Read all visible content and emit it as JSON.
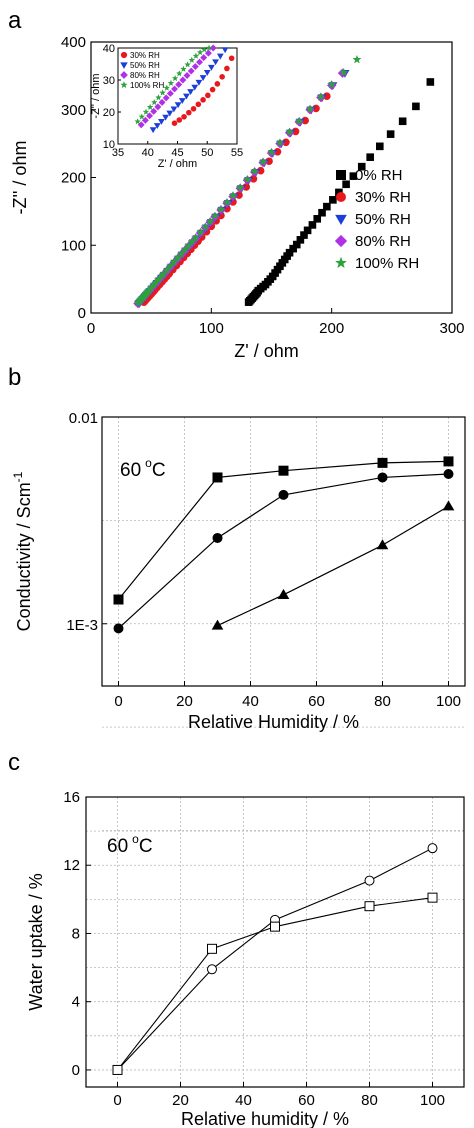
{
  "panel_labels": [
    "a",
    "b",
    "c"
  ],
  "chart_data": [
    {
      "id": "a",
      "type": "scatter",
      "xlabel": "Z' / ohm",
      "ylabel": "-Z'' / ohm",
      "xlim": [
        0,
        300
      ],
      "ylim": [
        0,
        400
      ],
      "xticks": [
        0,
        100,
        200,
        300
      ],
      "yticks": [
        0,
        100,
        200,
        300,
        400
      ],
      "legend_position": "bottom-right",
      "series": [
        {
          "name": "0% RH",
          "color": "#000000",
          "marker": "square",
          "x": [
            131,
            132,
            133,
            134,
            135,
            136,
            137,
            138,
            139,
            141,
            143,
            145,
            147,
            149,
            151,
            153,
            155,
            157,
            159,
            161,
            163,
            165,
            168,
            171,
            174,
            177,
            180,
            184,
            188,
            192,
            196,
            201,
            206,
            212,
            218,
            225,
            232,
            240,
            249,
            259,
            270,
            282
          ],
          "y": [
            16,
            18,
            20,
            22,
            24,
            26,
            28,
            30,
            33,
            36,
            39,
            42,
            46,
            50,
            54,
            59,
            64,
            69,
            74,
            79,
            84,
            89,
            95,
            101,
            108,
            115,
            122,
            130,
            139,
            148,
            157,
            167,
            178,
            190,
            202,
            216,
            230,
            246,
            264,
            283,
            305,
            341
          ]
        },
        {
          "name": "30% RH",
          "color": "#e8191e",
          "marker": "circle",
          "x": [
            44,
            45,
            46,
            47,
            48,
            49,
            50,
            51,
            52,
            53,
            55,
            57,
            59,
            61,
            63,
            65,
            68,
            71,
            74,
            77,
            80,
            83,
            86,
            89,
            92,
            96,
            100,
            104,
            108,
            113,
            118,
            123,
            129,
            135,
            141,
            148,
            155,
            162,
            170,
            178,
            187,
            196
          ],
          "y": [
            16,
            18,
            20,
            22,
            24,
            26,
            28,
            30,
            32,
            34,
            38,
            42,
            46,
            50,
            54,
            58,
            64,
            70,
            76,
            82,
            88,
            94,
            100,
            106,
            112,
            120,
            128,
            136,
            144,
            154,
            164,
            174,
            186,
            198,
            210,
            224,
            238,
            252,
            268,
            284,
            302,
            320
          ]
        },
        {
          "name": "50% RH",
          "color": "#1b3fd8",
          "marker": "triangle-down",
          "x": [
            40,
            41,
            42,
            43,
            44,
            45,
            46,
            47,
            48,
            49,
            51,
            53,
            55,
            57,
            59,
            61,
            64,
            67,
            70,
            73,
            76,
            79,
            82,
            85,
            88,
            92,
            96,
            100,
            104,
            109,
            114,
            119,
            125,
            131,
            137,
            144,
            151,
            158,
            166,
            174,
            183,
            192,
            201,
            211
          ],
          "y": [
            14,
            16,
            18,
            20,
            22,
            24,
            26,
            28,
            30,
            32,
            36,
            40,
            44,
            48,
            52,
            56,
            62,
            68,
            74,
            80,
            86,
            92,
            98,
            104,
            110,
            118,
            126,
            134,
            142,
            152,
            162,
            172,
            184,
            196,
            208,
            222,
            236,
            250,
            266,
            282,
            300,
            318,
            336,
            354
          ]
        },
        {
          "name": "80% RH",
          "color": "#b030e8",
          "marker": "diamond",
          "x": [
            39,
            40,
            41,
            42,
            43,
            44,
            45,
            46,
            47,
            48,
            50,
            52,
            54,
            56,
            58,
            60,
            63,
            66,
            69,
            72,
            75,
            78,
            81,
            84,
            87,
            91,
            95,
            99,
            103,
            108,
            113,
            118,
            124,
            130,
            136,
            143,
            150,
            157,
            165,
            173,
            182,
            191,
            200,
            209
          ],
          "y": [
            14,
            16,
            18,
            20,
            22,
            24,
            26,
            28,
            30,
            32,
            36,
            40,
            44,
            48,
            52,
            56,
            62,
            68,
            74,
            80,
            86,
            92,
            98,
            104,
            110,
            118,
            126,
            134,
            142,
            152,
            162,
            172,
            184,
            196,
            208,
            222,
            236,
            250,
            266,
            282,
            300,
            318,
            336,
            354
          ]
        },
        {
          "name": "100% RH",
          "color": "#2aa33a",
          "marker": "star",
          "x": [
            39,
            40,
            41,
            42,
            43,
            44,
            45,
            46,
            47,
            48,
            50,
            52,
            54,
            56,
            58,
            60,
            63,
            66,
            69,
            72,
            75,
            78,
            81,
            84,
            87,
            91,
            95,
            99,
            103,
            108,
            113,
            118,
            124,
            130,
            136,
            143,
            150,
            157,
            165,
            173,
            182,
            191,
            200,
            210,
            221
          ],
          "y": [
            15,
            17,
            19,
            21,
            23,
            25,
            27,
            29,
            31,
            33,
            37,
            41,
            45,
            49,
            53,
            57,
            63,
            69,
            75,
            81,
            87,
            93,
            99,
            105,
            111,
            119,
            127,
            135,
            143,
            153,
            163,
            173,
            185,
            197,
            209,
            223,
            237,
            251,
            267,
            283,
            301,
            319,
            337,
            355,
            374
          ]
        }
      ],
      "inset": {
        "xlabel": "Z' / ohm",
        "ylabel": "-Z'' / ohm",
        "xlim": [
          35,
          55
        ],
        "ylim": [
          10,
          40
        ],
        "xticks": [
          35,
          40,
          45,
          50,
          55
        ],
        "yticks": [
          10,
          20,
          30,
          40
        ],
        "legend_position": "top-left",
        "series": [
          {
            "name": "30% RH",
            "color": "#e8191e",
            "marker": "circle",
            "x": [
              44.5,
              45.3,
              46.1,
              46.9,
              47.7,
              48.5,
              49.3,
              50.1,
              50.9,
              51.7,
              52.5,
              53.3,
              54.1
            ],
            "y": [
              16.5,
              17.5,
              18.5,
              19.8,
              21.0,
              22.4,
              23.8,
              25.2,
              27.0,
              28.8,
              31.0,
              33.6,
              36.8
            ]
          },
          {
            "name": "50% RH",
            "color": "#1b3fd8",
            "marker": "triangle-down",
            "x": [
              40.9,
              41.6,
              42.3,
              43.0,
              43.7,
              44.4,
              45.1,
              45.8,
              46.5,
              47.2,
              47.9,
              48.6,
              49.3,
              50.0,
              50.7,
              51.4,
              52.2,
              53.0
            ],
            "y": [
              14.5,
              15.8,
              17.1,
              18.4,
              19.7,
              21.0,
              22.3,
              23.6,
              25.0,
              26.4,
              27.8,
              29.3,
              30.8,
              32.4,
              34.0,
              35.7,
              37.5,
              39.5
            ]
          },
          {
            "name": "80% RH",
            "color": "#b030e8",
            "marker": "diamond",
            "x": [
              38.9,
              39.6,
              40.3,
              41.0,
              41.7,
              42.4,
              43.1,
              43.8,
              44.5,
              45.2,
              45.9,
              46.6,
              47.3,
              48.0,
              48.7,
              49.4,
              50.2,
              51.0
            ],
            "y": [
              16.0,
              17.4,
              18.8,
              20.2,
              21.6,
              23.0,
              24.4,
              25.8,
              27.2,
              28.6,
              30.0,
              31.4,
              32.8,
              34.2,
              35.6,
              37.0,
              38.4,
              40.0
            ]
          },
          {
            "name": "100% RH",
            "color": "#2aa33a",
            "marker": "star",
            "x": [
              38.3,
              39.0,
              39.7,
              40.4,
              41.1,
              41.8,
              42.5,
              43.2,
              43.9,
              44.6,
              45.3,
              46.0,
              46.7,
              47.4,
              48.1,
              48.8,
              49.5,
              50.3
            ],
            "y": [
              17.0,
              18.5,
              20.0,
              21.5,
              23.0,
              24.5,
              26.0,
              27.5,
              29.0,
              30.5,
              32.0,
              33.4,
              34.8,
              36.2,
              37.5,
              38.6,
              39.5,
              40.0
            ]
          }
        ]
      }
    },
    {
      "id": "b",
      "type": "line",
      "xlabel": "Relative Humidity / %",
      "ylabel": "Conductivity / Scm",
      "ylabel_sup": "-1",
      "xlim": [
        -5,
        105
      ],
      "ylim": [
        0.0005,
        0.01
      ],
      "yscale": "log",
      "xticks": [
        0,
        20,
        40,
        60,
        80,
        100
      ],
      "yticks": [
        0.001,
        0.01
      ],
      "ytick_labels": [
        "1E-3",
        "0.01"
      ],
      "grid": true,
      "annotation": "60",
      "annotation_unit": "C",
      "series": [
        {
          "marker": "square",
          "x": [
            0,
            30,
            50,
            80,
            100
          ],
          "y": [
            0.00131,
            0.0051,
            0.0055,
            0.006,
            0.0061
          ]
        },
        {
          "marker": "circle",
          "x": [
            0,
            30,
            50,
            80,
            100
          ],
          "y": [
            0.00095,
            0.0026,
            0.0042,
            0.0051,
            0.0053
          ]
        },
        {
          "marker": "triangle-up",
          "x": [
            30,
            50,
            80,
            100
          ],
          "y": [
            0.00098,
            0.00138,
            0.0024,
            0.0037
          ]
        }
      ]
    },
    {
      "id": "c",
      "type": "line",
      "xlabel": "Relative humidity / %",
      "ylabel": "Water uptake / %",
      "xlim": [
        -10,
        110
      ],
      "ylim": [
        -1,
        16
      ],
      "xticks": [
        0,
        20,
        40,
        60,
        80,
        100
      ],
      "yticks": [
        0,
        4,
        8,
        12,
        16
      ],
      "grid": true,
      "annotation": "60",
      "annotation_unit": "C",
      "series": [
        {
          "marker": "open-circle",
          "x": [
            0,
            30,
            50,
            80,
            100
          ],
          "y": [
            0.0,
            5.9,
            8.8,
            11.1,
            13.0
          ]
        },
        {
          "marker": "open-square",
          "x": [
            0,
            30,
            50,
            80,
            100
          ],
          "y": [
            0.0,
            7.1,
            8.4,
            9.6,
            10.1
          ]
        }
      ]
    }
  ]
}
